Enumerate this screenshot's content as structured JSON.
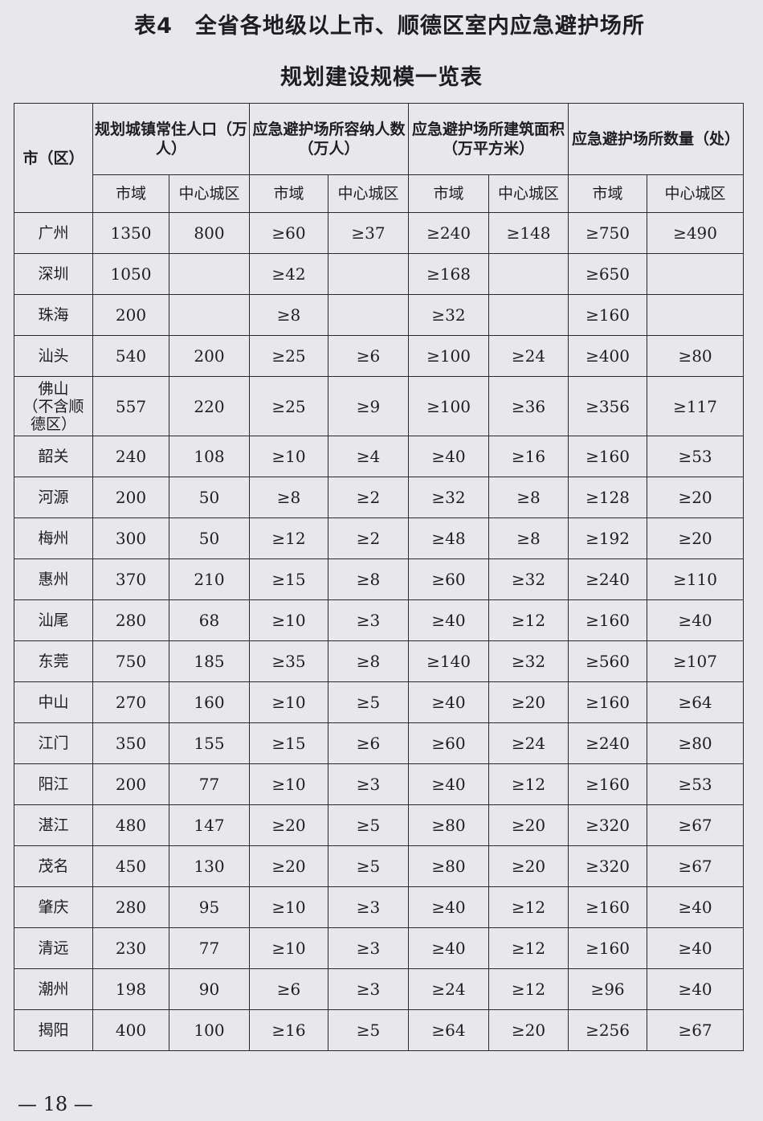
{
  "title_line1": "表4　全省各地级以上市、顺德区室内应急避护场所",
  "title_line2": "规划建设规模一览表",
  "table": {
    "city_header": "市（区）",
    "groups": [
      "规划城镇常住人口（万人）",
      "应急避护场所容纳人数（万人）",
      "应急避护场所建筑面积（万平方米）",
      "应急避护场所数量（处）"
    ],
    "subheaders": [
      "市域",
      "中心城区"
    ],
    "rows": [
      [
        "广州",
        "1350",
        "800",
        "≥60",
        "≥37",
        "≥240",
        "≥148",
        "≥750",
        "≥490"
      ],
      [
        "深圳",
        "1050",
        "",
        "≥42",
        "",
        "≥168",
        "",
        "≥650",
        ""
      ],
      [
        "珠海",
        "200",
        "",
        "≥8",
        "",
        "≥32",
        "",
        "≥160",
        ""
      ],
      [
        "汕头",
        "540",
        "200",
        "≥25",
        "≥6",
        "≥100",
        "≥24",
        "≥400",
        "≥80"
      ],
      [
        "佛山（不含顺德区）",
        "557",
        "220",
        "≥25",
        "≥9",
        "≥100",
        "≥36",
        "≥356",
        "≥117"
      ],
      [
        "韶关",
        "240",
        "108",
        "≥10",
        "≥4",
        "≥40",
        "≥16",
        "≥160",
        "≥53"
      ],
      [
        "河源",
        "200",
        "50",
        "≥8",
        "≥2",
        "≥32",
        "≥8",
        "≥128",
        "≥20"
      ],
      [
        "梅州",
        "300",
        "50",
        "≥12",
        "≥2",
        "≥48",
        "≥8",
        "≥192",
        "≥20"
      ],
      [
        "惠州",
        "370",
        "210",
        "≥15",
        "≥8",
        "≥60",
        "≥32",
        "≥240",
        "≥110"
      ],
      [
        "汕尾",
        "280",
        "68",
        "≥10",
        "≥3",
        "≥40",
        "≥12",
        "≥160",
        "≥40"
      ],
      [
        "东莞",
        "750",
        "185",
        "≥35",
        "≥8",
        "≥140",
        "≥32",
        "≥560",
        "≥107"
      ],
      [
        "中山",
        "270",
        "160",
        "≥10",
        "≥5",
        "≥40",
        "≥20",
        "≥160",
        "≥64"
      ],
      [
        "江门",
        "350",
        "155",
        "≥15",
        "≥6",
        "≥60",
        "≥24",
        "≥240",
        "≥80"
      ],
      [
        "阳江",
        "200",
        "77",
        "≥10",
        "≥3",
        "≥40",
        "≥12",
        "≥160",
        "≥53"
      ],
      [
        "湛江",
        "480",
        "147",
        "≥20",
        "≥5",
        "≥80",
        "≥20",
        "≥320",
        "≥67"
      ],
      [
        "茂名",
        "450",
        "130",
        "≥20",
        "≥5",
        "≥80",
        "≥20",
        "≥320",
        "≥67"
      ],
      [
        "肇庆",
        "280",
        "95",
        "≥10",
        "≥3",
        "≥40",
        "≥12",
        "≥160",
        "≥40"
      ],
      [
        "清远",
        "230",
        "77",
        "≥10",
        "≥3",
        "≥40",
        "≥12",
        "≥160",
        "≥40"
      ],
      [
        "潮州",
        "198",
        "90",
        "≥6",
        "≥3",
        "≥24",
        "≥12",
        "≥96",
        "≥40"
      ],
      [
        "揭阳",
        "400",
        "100",
        "≥16",
        "≥5",
        "≥64",
        "≥20",
        "≥256",
        "≥67"
      ]
    ]
  },
  "page_number": "— 18 —"
}
